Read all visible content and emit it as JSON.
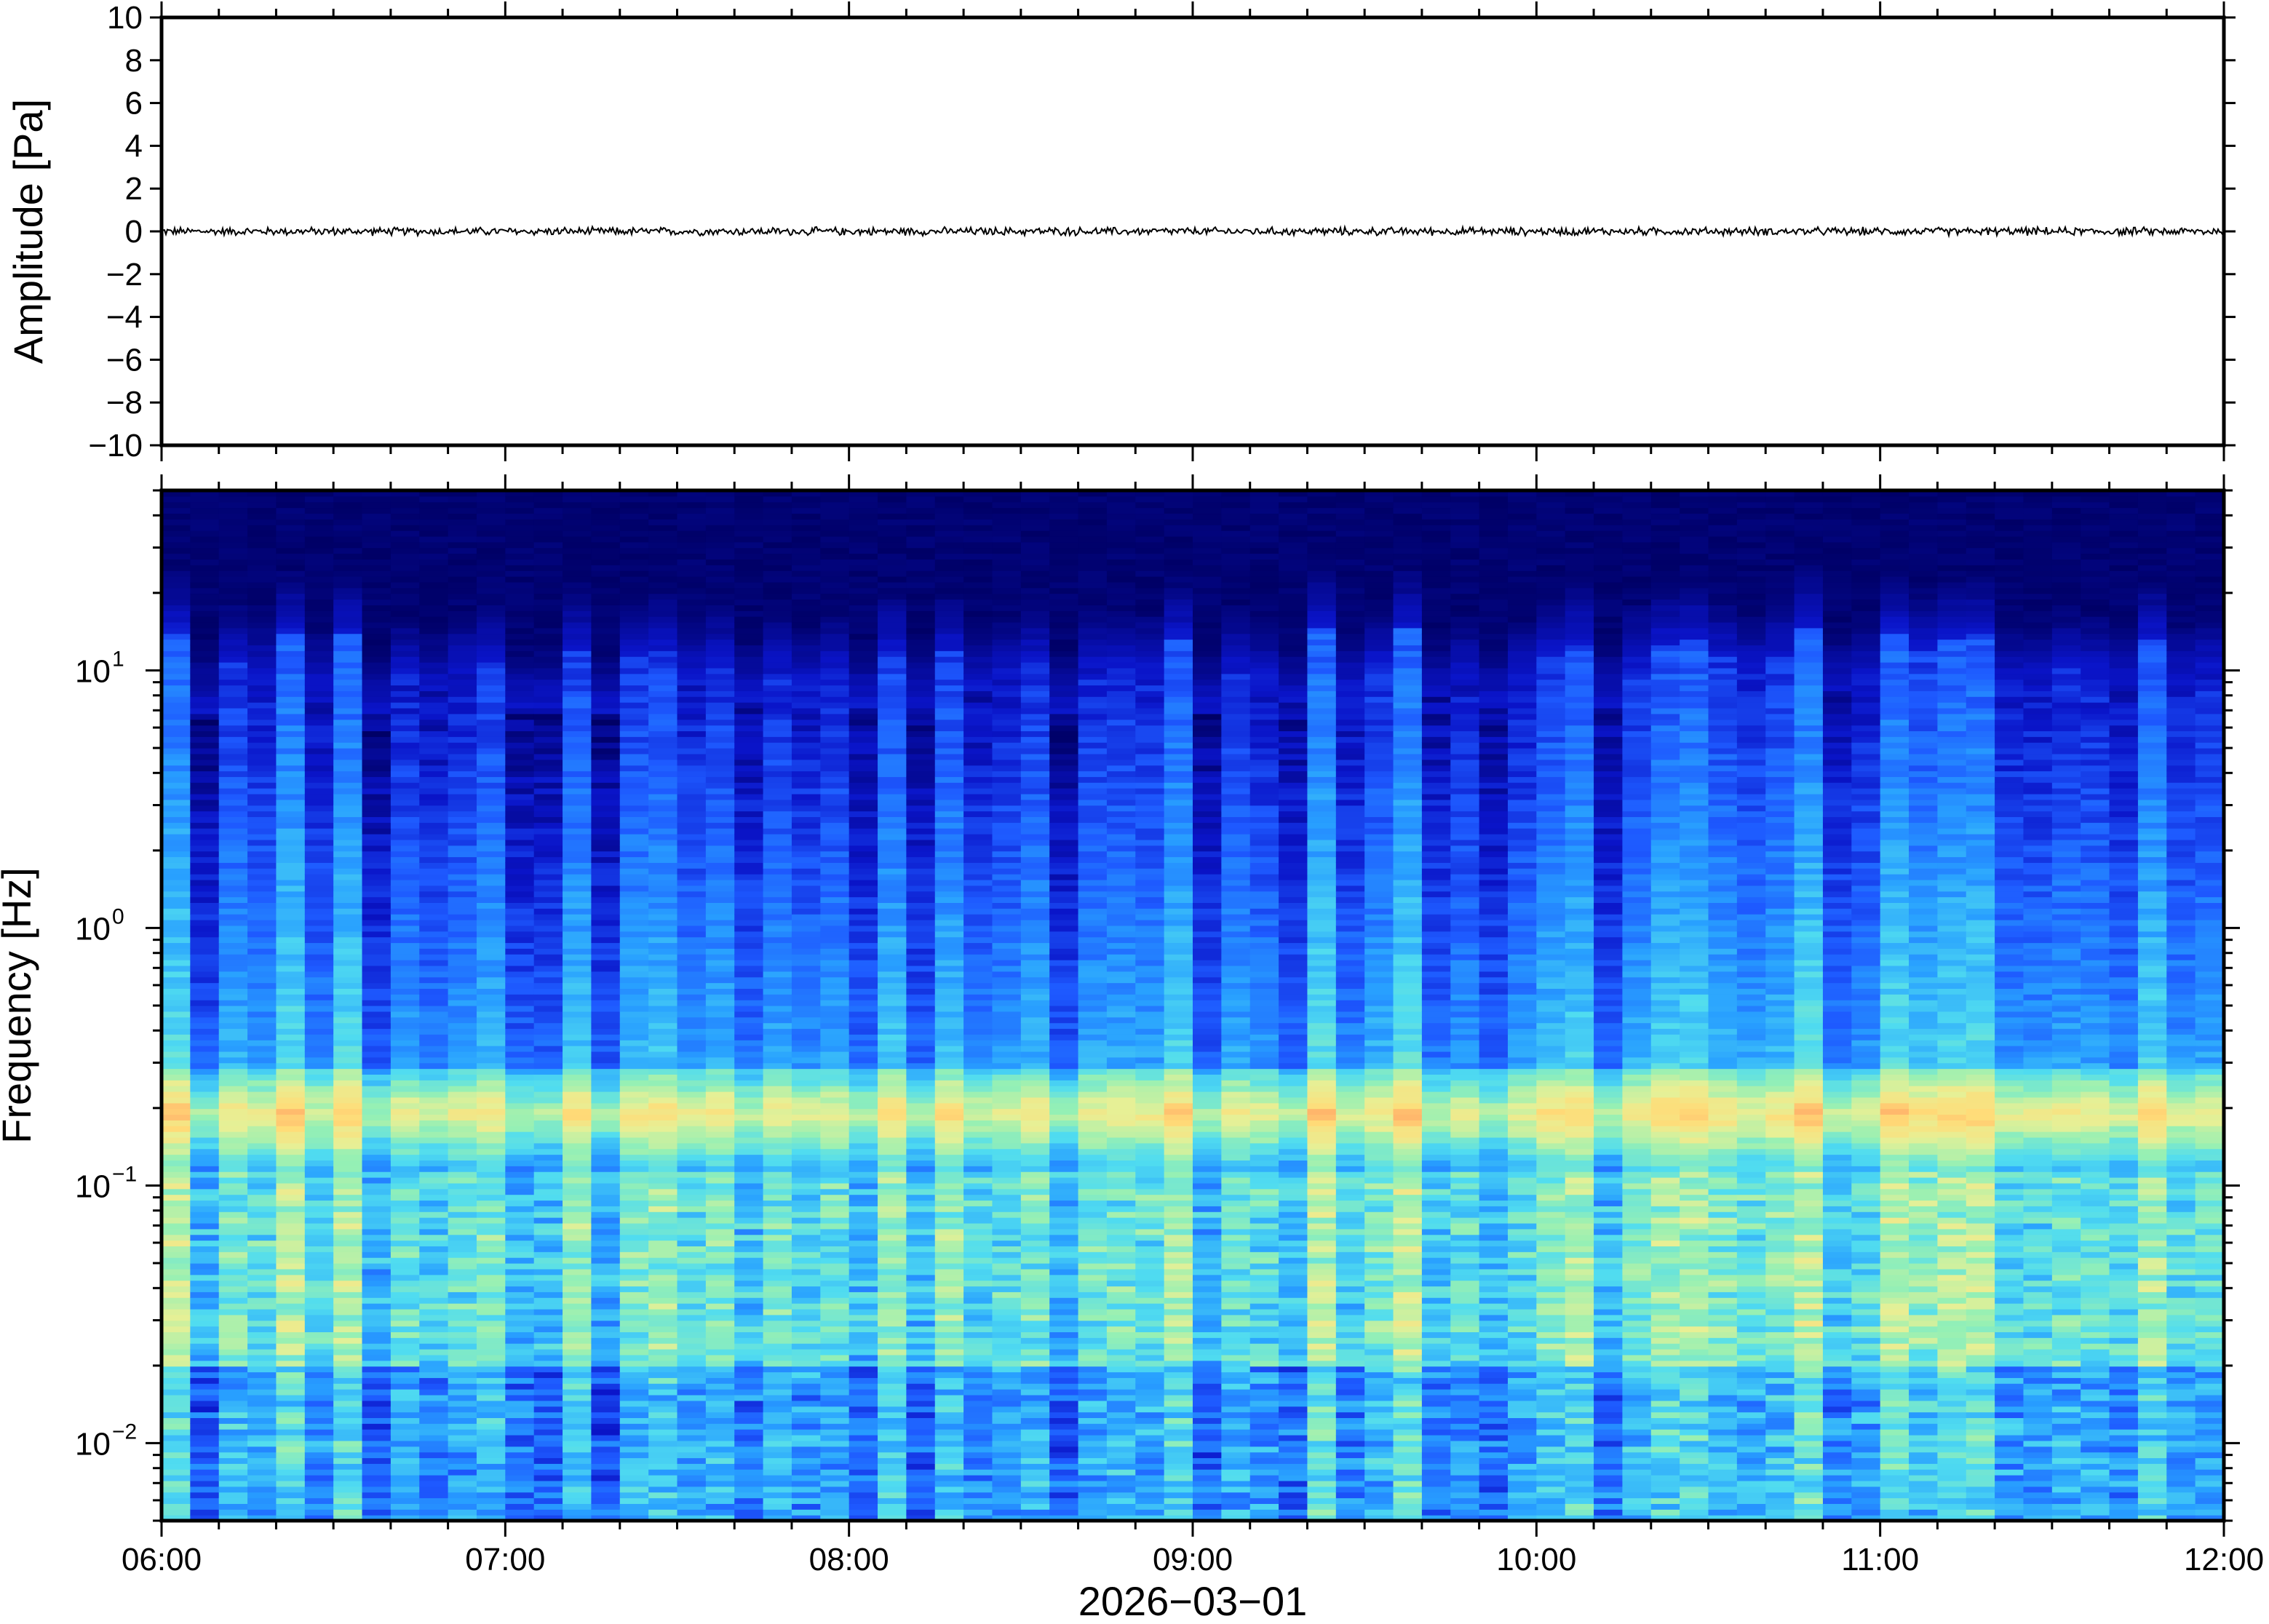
{
  "chart_data": [
    {
      "type": "line",
      "panel": "waveform",
      "ylabel": "Amplitude [Pa]",
      "ylim": [
        -10,
        10
      ],
      "yticks": [
        10,
        8,
        6,
        4,
        2,
        0,
        -2,
        -4,
        -6,
        -8,
        -10
      ],
      "ytick_labels": [
        "10",
        "8",
        "6",
        "4",
        "2",
        "0",
        "−2",
        "−4",
        "−6",
        "−8",
        "−10"
      ],
      "xlim": [
        "06:00",
        "12:00"
      ],
      "series": [
        {
          "x_range": [
            "06:00",
            "12:00"
          ],
          "approx_mean": 0.0,
          "approx_peak_amplitude": 0.15,
          "color": "#000000"
        }
      ],
      "grid": false
    },
    {
      "type": "heatmap",
      "panel": "spectrogram",
      "ylabel": "Frequency [Hz]",
      "yscale": "log",
      "ylim": [
        0.005,
        50
      ],
      "yticks": [
        {
          "base": "10",
          "exp": "1",
          "value": 10
        },
        {
          "base": "10",
          "exp": "0",
          "value": 1
        },
        {
          "base": "10",
          "exp": "−1",
          "value": 0.1
        },
        {
          "base": "10",
          "exp": "−2",
          "value": 0.01
        }
      ],
      "xlabel": "2026−03−01",
      "xticks": [
        "06:00",
        "07:00",
        "08:00",
        "09:00",
        "10:00",
        "11:00",
        "12:00"
      ],
      "xlim": [
        "06:00",
        "12:00"
      ],
      "colormap": [
        "#000066",
        "#0a14c8",
        "#1e5aff",
        "#28a0ff",
        "#50dcf0",
        "#96f0b4",
        "#e6f096",
        "#ffdc78",
        "#ffa064"
      ],
      "features": {
        "energy_band_hz": [
          0.15,
          0.25
        ],
        "energy_band_peak_color": "#ffb070",
        "high_freq_cutoff_hz": 10,
        "background_above_cutoff": "#000066"
      },
      "grid": false
    }
  ]
}
